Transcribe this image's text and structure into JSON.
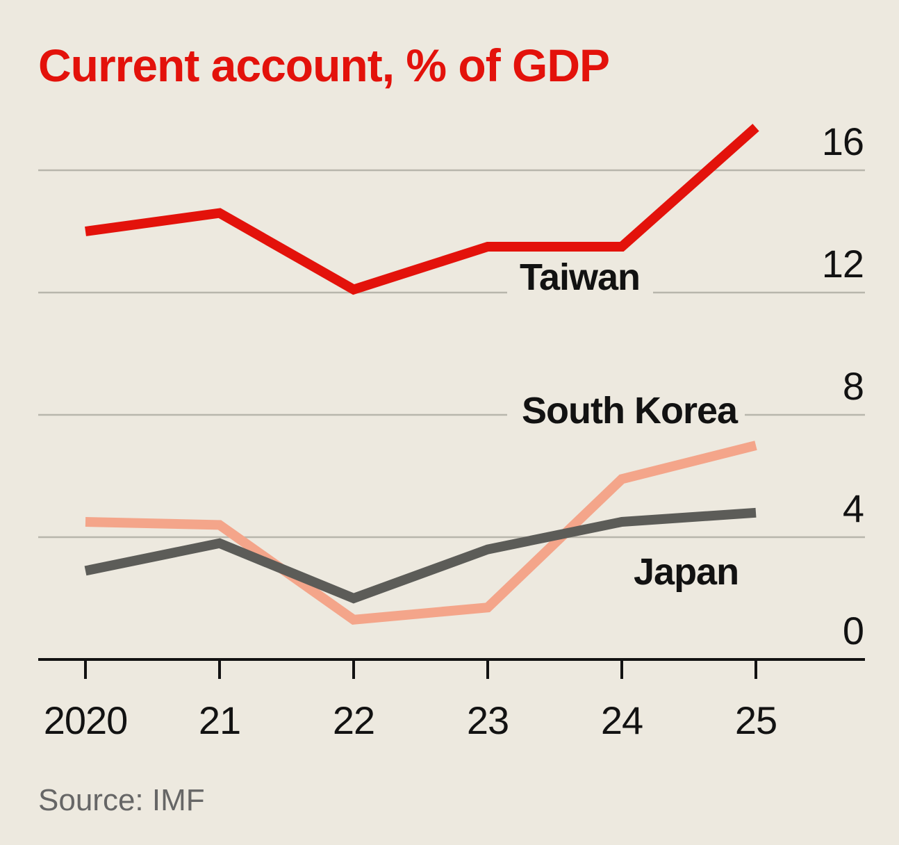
{
  "chart_data": {
    "type": "line",
    "title": "Current account, % of GDP",
    "source": "Source: IMF",
    "x": [
      2020,
      2021,
      2022,
      2023,
      2024,
      2025
    ],
    "x_tick_labels": [
      "2020",
      "21",
      "22",
      "23",
      "24",
      "25"
    ],
    "ylim": [
      0,
      16
    ],
    "y_ticks": [
      0,
      4,
      8,
      12,
      16
    ],
    "y_tick_labels": [
      "0",
      "4",
      "8",
      "12",
      "16"
    ],
    "y_axis_position": "right",
    "grid": true,
    "series": [
      {
        "name": "Taiwan",
        "color": "#e3120b",
        "values": [
          14.0,
          14.6,
          12.1,
          13.5,
          13.5,
          17.4
        ]
      },
      {
        "name": "South Korea",
        "color": "#f4a58a",
        "values": [
          4.5,
          4.4,
          1.3,
          1.7,
          5.9,
          7.0
        ]
      },
      {
        "name": "Japan",
        "color": "#5c5c58",
        "values": [
          2.9,
          3.8,
          2.0,
          3.6,
          4.5,
          4.8
        ]
      }
    ]
  }
}
